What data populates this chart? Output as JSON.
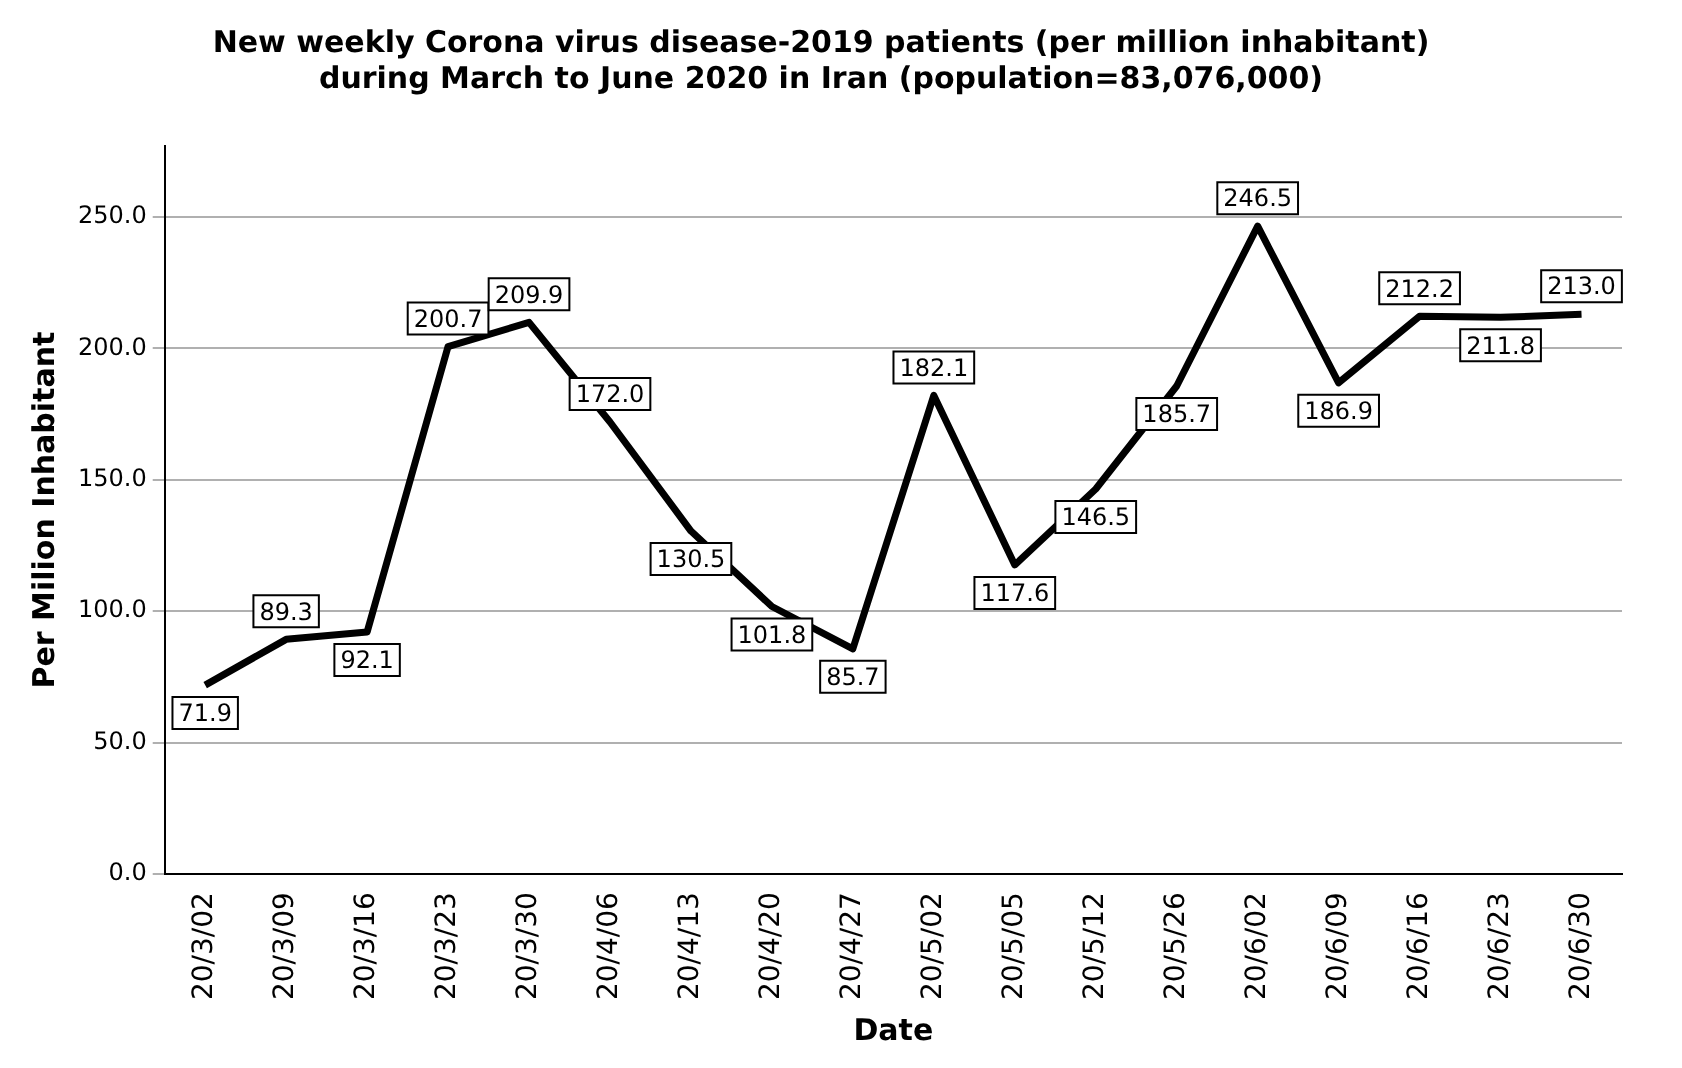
{
  "chart_data": {
    "type": "line",
    "title": "New weekly Corona virus disease-2019 patients (per million inhabitant)\nduring March to June 2020 in Iran (population=83,076,000)",
    "xlabel": "Date",
    "ylabel": "Per Milion Inhabitant",
    "categories": [
      "20/3/02",
      "20/3/09",
      "20/3/16",
      "20/3/23",
      "20/3/30",
      "20/4/06",
      "20/4/13",
      "20/4/20",
      "20/4/27",
      "20/5/02",
      "20/5/05",
      "20/5/12",
      "20/5/26",
      "20/6/02",
      "20/6/09",
      "20/6/16",
      "20/6/23",
      "20/6/30"
    ],
    "values": [
      71.9,
      89.3,
      92.1,
      200.7,
      209.9,
      172.0,
      130.5,
      101.8,
      85.7,
      182.1,
      117.6,
      146.5,
      185.7,
      246.5,
      186.9,
      212.2,
      211.8,
      213.0
    ],
    "value_labels": [
      "71.9",
      "89.3",
      "92.1",
      "200.7",
      "209.9",
      "172.0",
      "130.5",
      "101.8",
      "85.7",
      "182.1",
      "117.6",
      "146.5",
      "185.7",
      "246.5",
      "186.9",
      "212.2",
      "211.8",
      "213.0"
    ],
    "color": "#000000",
    "ylim": [
      0,
      277
    ],
    "yticks": [
      {
        "value": 0,
        "label": "0.0"
      },
      {
        "value": 50,
        "label": "50.0"
      },
      {
        "value": 100,
        "label": "100.0"
      },
      {
        "value": 150,
        "label": "150.0"
      },
      {
        "value": 200,
        "label": "200.0"
      },
      {
        "value": 250,
        "label": "250.0"
      }
    ],
    "grid": "y",
    "legend": false,
    "marker": "none",
    "line_style": "solid"
  }
}
